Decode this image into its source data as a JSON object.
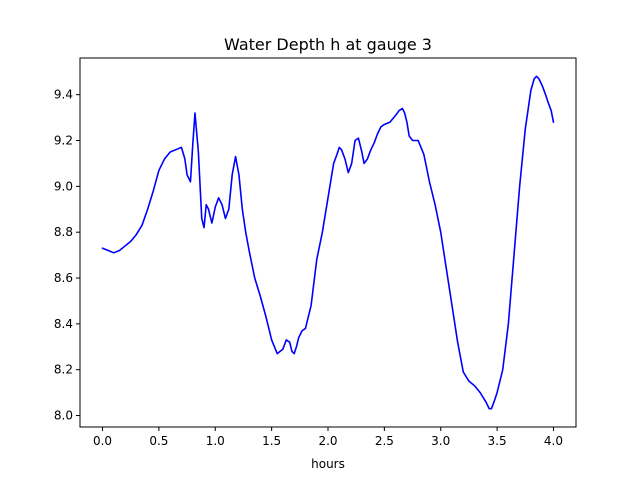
{
  "chart_data": {
    "type": "line",
    "title": "Water Depth h at gauge 3",
    "xlabel": "hours",
    "ylabel": "",
    "xlim": [
      -0.2,
      4.2
    ],
    "ylim": [
      7.95,
      9.56
    ],
    "xticks": [
      0.0,
      0.5,
      1.0,
      1.5,
      2.0,
      2.5,
      3.0,
      3.5,
      4.0
    ],
    "xtick_labels": [
      "0.0",
      "0.5",
      "1.0",
      "1.5",
      "2.0",
      "2.5",
      "3.0",
      "3.5",
      "4.0"
    ],
    "yticks": [
      8.0,
      8.2,
      8.4,
      8.6,
      8.8,
      9.0,
      9.2,
      9.4
    ],
    "ytick_labels": [
      "8.0",
      "8.2",
      "8.4",
      "8.6",
      "8.8",
      "9.0",
      "9.2",
      "9.4"
    ],
    "grid": false,
    "series": [
      {
        "color": "#0000ff",
        "x": [
          0.0,
          0.05,
          0.1,
          0.15,
          0.2,
          0.25,
          0.3,
          0.35,
          0.4,
          0.45,
          0.5,
          0.55,
          0.6,
          0.65,
          0.7,
          0.73,
          0.75,
          0.78,
          0.8,
          0.82,
          0.85,
          0.88,
          0.9,
          0.92,
          0.94,
          0.97,
          1.0,
          1.03,
          1.06,
          1.09,
          1.12,
          1.15,
          1.18,
          1.21,
          1.24,
          1.27,
          1.3,
          1.35,
          1.4,
          1.45,
          1.5,
          1.55,
          1.6,
          1.63,
          1.66,
          1.68,
          1.7,
          1.72,
          1.74,
          1.77,
          1.8,
          1.85,
          1.9,
          1.95,
          2.0,
          2.05,
          2.08,
          2.1,
          2.12,
          2.15,
          2.18,
          2.21,
          2.24,
          2.27,
          2.3,
          2.32,
          2.35,
          2.38,
          2.41,
          2.44,
          2.47,
          2.5,
          2.55,
          2.6,
          2.63,
          2.66,
          2.68,
          2.7,
          2.72,
          2.75,
          2.8,
          2.85,
          2.9,
          2.95,
          3.0,
          3.05,
          3.1,
          3.15,
          3.2,
          3.25,
          3.3,
          3.35,
          3.4,
          3.43,
          3.45,
          3.48,
          3.5,
          3.55,
          3.6,
          3.65,
          3.7,
          3.75,
          3.8,
          3.83,
          3.85,
          3.87,
          3.9,
          3.93,
          3.95,
          3.98,
          4.0
        ],
        "y": [
          8.73,
          8.72,
          8.71,
          8.72,
          8.74,
          8.76,
          8.79,
          8.83,
          8.9,
          8.98,
          9.07,
          9.12,
          9.15,
          9.16,
          9.17,
          9.12,
          9.05,
          9.02,
          9.18,
          9.32,
          9.15,
          8.86,
          8.82,
          8.92,
          8.9,
          8.84,
          8.91,
          8.95,
          8.92,
          8.86,
          8.9,
          9.05,
          9.13,
          9.05,
          8.9,
          8.8,
          8.72,
          8.6,
          8.52,
          8.43,
          8.33,
          8.27,
          8.29,
          8.33,
          8.32,
          8.28,
          8.27,
          8.3,
          8.34,
          8.37,
          8.38,
          8.48,
          8.68,
          8.8,
          8.95,
          9.1,
          9.14,
          9.17,
          9.16,
          9.12,
          9.06,
          9.1,
          9.2,
          9.21,
          9.15,
          9.1,
          9.12,
          9.16,
          9.19,
          9.23,
          9.26,
          9.27,
          9.28,
          9.31,
          9.33,
          9.34,
          9.32,
          9.28,
          9.22,
          9.2,
          9.2,
          9.14,
          9.02,
          8.92,
          8.8,
          8.64,
          8.48,
          8.32,
          8.19,
          8.15,
          8.13,
          8.1,
          8.06,
          8.03,
          8.03,
          8.07,
          8.1,
          8.2,
          8.4,
          8.7,
          9.0,
          9.25,
          9.42,
          9.47,
          9.48,
          9.47,
          9.44,
          9.4,
          9.37,
          9.33,
          9.28
        ]
      }
    ]
  }
}
